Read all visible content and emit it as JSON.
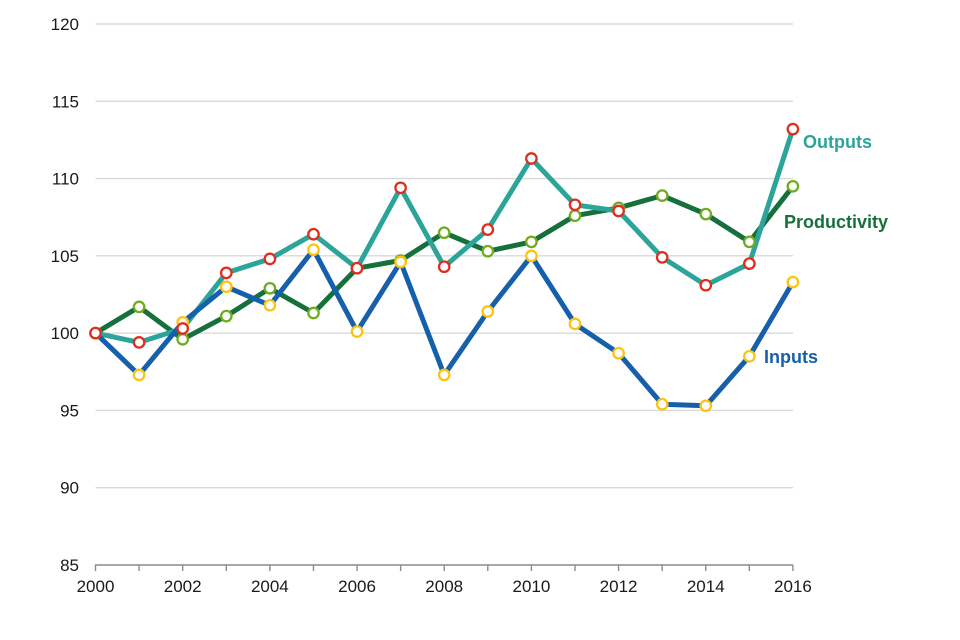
{
  "chart_data": {
    "type": "line",
    "title": "",
    "xlabel": "",
    "ylabel": "",
    "x": [
      2000,
      2001,
      2002,
      2003,
      2004,
      2005,
      2006,
      2007,
      2008,
      2009,
      2010,
      2011,
      2012,
      2013,
      2014,
      2015,
      2016
    ],
    "x_labeled_ticks": [
      "2000",
      "2002",
      "2004",
      "2006",
      "2008",
      "2010",
      "2012",
      "2014",
      "2016"
    ],
    "y_ticks": [
      "120",
      "115",
      "110",
      "105",
      "100",
      "95",
      "90",
      "85"
    ],
    "ylim": [
      85,
      120
    ],
    "grid": "horizontal",
    "legend_position": "end-of-line-labels",
    "series": [
      {
        "name": "Outputs",
        "line_color": "#2da49a",
        "marker_ring_color": "#e02d1e",
        "marker_fill": "#ffffff",
        "values": [
          100.0,
          99.4,
          100.3,
          103.9,
          104.8,
          106.4,
          104.2,
          109.4,
          104.3,
          106.7,
          111.3,
          108.3,
          107.9,
          104.9,
          103.1,
          104.5,
          113.2
        ]
      },
      {
        "name": "Productivity",
        "line_color": "#15703c",
        "marker_ring_color": "#72ab20",
        "marker_fill": "#ffffff",
        "values": [
          100.0,
          101.7,
          99.6,
          101.1,
          102.9,
          101.3,
          104.2,
          104.7,
          106.5,
          105.3,
          105.9,
          107.6,
          108.1,
          108.9,
          107.7,
          105.9,
          109.5
        ]
      },
      {
        "name": "Inputs",
        "line_color": "#1660ab",
        "marker_ring_color": "#fdc313",
        "marker_fill": "#ffffff",
        "values": [
          100.0,
          97.3,
          100.7,
          103.0,
          101.8,
          105.4,
          100.1,
          104.6,
          97.3,
          101.4,
          105.0,
          100.6,
          98.7,
          95.4,
          95.3,
          98.5,
          103.3
        ]
      }
    ],
    "colors": {
      "gridline": "#d9d9d9",
      "axis_line": "#8c8c8c",
      "tick_label": "#1a1a1a",
      "background": "#ffffff"
    }
  }
}
